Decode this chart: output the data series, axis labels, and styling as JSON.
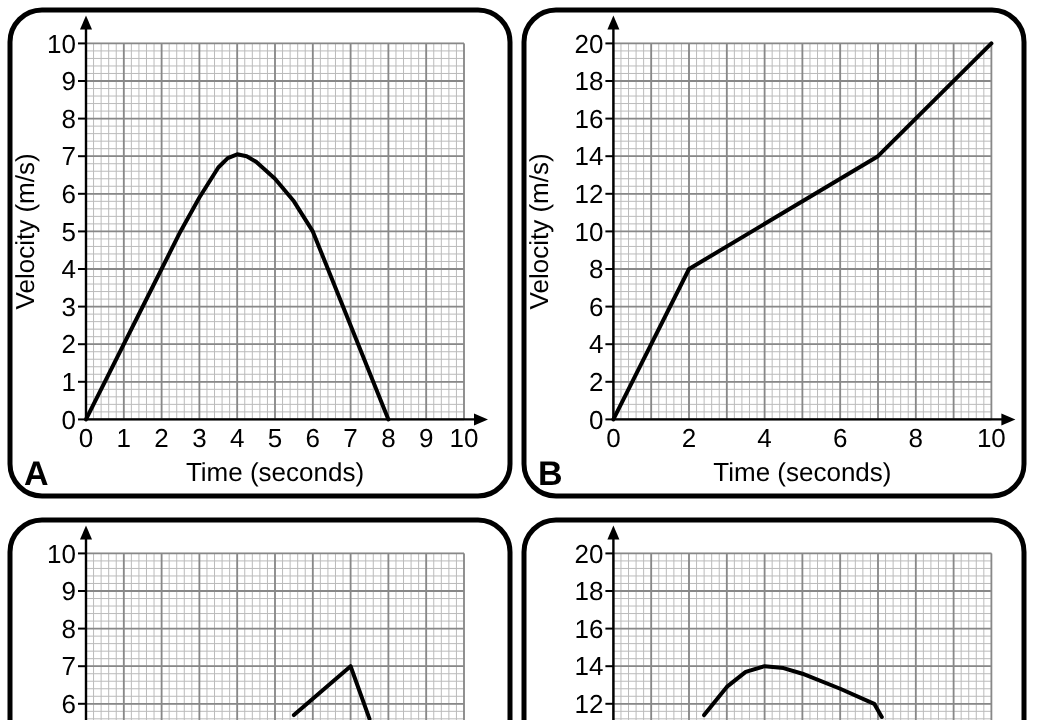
{
  "chart_data": [
    {
      "type": "line",
      "xlabel": "Time (seconds)",
      "ylabel": "Velocity (m/s)",
      "annotations": [
        "A"
      ],
      "xlim": [
        0,
        10
      ],
      "ylim": [
        0,
        10
      ],
      "xticks": [
        0,
        1,
        2,
        3,
        4,
        5,
        6,
        7,
        8,
        9,
        10
      ],
      "yticks": [
        0,
        1,
        2,
        3,
        4,
        5,
        6,
        7,
        8,
        9,
        10
      ],
      "grid": true,
      "series": [
        {
          "color": "#000000",
          "x": [
            0,
            2,
            2.5,
            3,
            3.5,
            3.75,
            4,
            4.25,
            4.5,
            5,
            5.5,
            6,
            8
          ],
          "values": [
            0,
            4,
            5,
            5.9,
            6.7,
            6.95,
            7.05,
            7,
            6.85,
            6.4,
            5.8,
            5,
            0
          ]
        }
      ]
    },
    {
      "type": "line",
      "xlabel": "Time (seconds)",
      "ylabel": "Velocity (m/s)",
      "annotations": [
        "B"
      ],
      "xlim": [
        0,
        10
      ],
      "ylim": [
        0,
        20
      ],
      "xticks": [
        0,
        2,
        4,
        6,
        8,
        10
      ],
      "yticks": [
        0,
        2,
        4,
        6,
        8,
        10,
        12,
        14,
        16,
        18,
        20
      ],
      "grid": true,
      "series": [
        {
          "color": "#000000",
          "x": [
            0,
            2,
            7,
            10
          ],
          "values": [
            0,
            8,
            14,
            20
          ]
        }
      ]
    },
    {
      "type": "line",
      "xlim": [
        0,
        10
      ],
      "ylim": [
        0,
        10
      ],
      "xticks": [
        0,
        1,
        2,
        3,
        4,
        5,
        6,
        7,
        8,
        9,
        10
      ],
      "yticks": [
        6,
        7,
        8,
        9,
        10
      ],
      "grid": true,
      "tick_labels": "y",
      "series": [
        {
          "color": "#000000",
          "x": [
            5.5,
            7,
            7.5
          ],
          "values": [
            5.7,
            7,
            5.6
          ]
        }
      ]
    },
    {
      "type": "line",
      "xlim": [
        0,
        10
      ],
      "ylim": [
        0,
        20
      ],
      "xticks": [
        0,
        2,
        4,
        6,
        8,
        10
      ],
      "yticks": [
        12,
        14,
        16,
        18,
        20
      ],
      "grid": true,
      "tick_labels": "y",
      "series": [
        {
          "color": "#000000",
          "x": [
            2.4,
            3,
            3.5,
            4,
            4.5,
            5,
            6,
            6.9,
            7.1
          ],
          "values": [
            11.4,
            12.9,
            13.7,
            14,
            13.9,
            13.6,
            12.8,
            12,
            11.3
          ]
        }
      ]
    }
  ]
}
